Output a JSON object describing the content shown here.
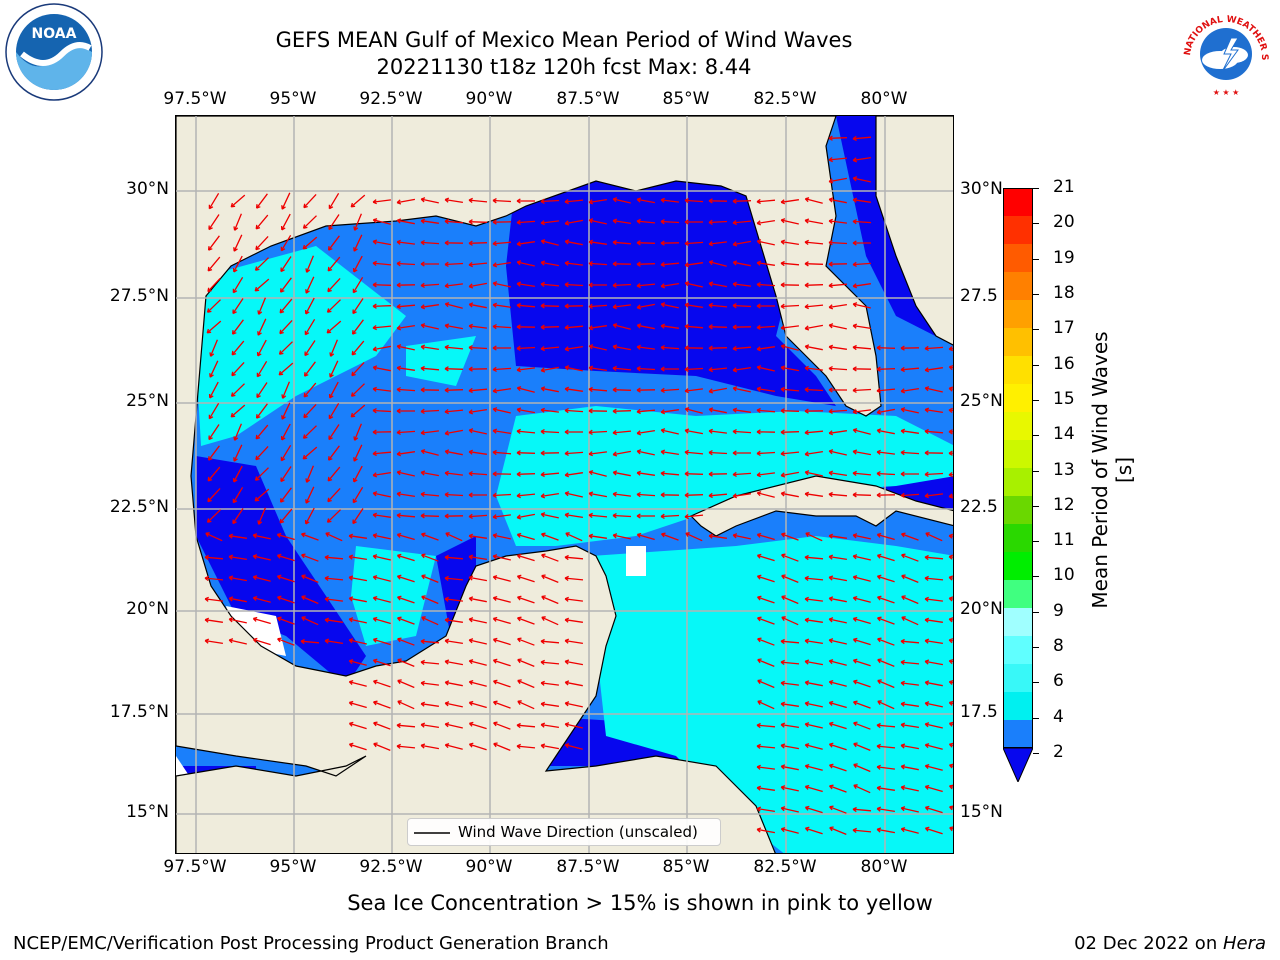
{
  "header": {
    "title_line1": "GEFS MEAN Gulf of Mexico Mean Period of Wind Waves",
    "title_line2": "20221130 t18z 120h fcst   Max: 8.44"
  },
  "logos": {
    "left": "NOAA",
    "right": "NATIONAL WEATHER SERVICE"
  },
  "map": {
    "lon_ticks": [
      "97.5°W",
      "95°W",
      "92.5°W",
      "90°W",
      "87.5°W",
      "85°W",
      "82.5°W",
      "80°W"
    ],
    "lat_ticks": [
      "30°N",
      "27.5°N",
      "25°N",
      "22.5°N",
      "20°N",
      "17.5°N",
      "15°N"
    ],
    "right_lat_ticks": [
      "30°N",
      "27.5",
      "25°N",
      "22.5",
      "20°N",
      "17.5",
      "15°N"
    ],
    "legend_label": "Wind Wave Direction (unscaled)",
    "colors": {
      "land": "#efecdc",
      "ocean_2_4": "#1a7ffb",
      "ocean_4_6": "#06f8f8",
      "ocean_lt_2": "#0707ee",
      "arrow": "#ee0000",
      "grid": "#b3b3b3"
    }
  },
  "colorbar": {
    "label": "Mean Period of Wind Waves [s]",
    "ticks": [
      "21",
      "20",
      "19",
      "18",
      "17",
      "16",
      "15",
      "14",
      "13",
      "12",
      "11",
      "10",
      "9",
      "8",
      "6",
      "4",
      "2"
    ],
    "colors": [
      "#ff0000",
      "#ff3000",
      "#ff5b00",
      "#ff8000",
      "#ffa000",
      "#ffc000",
      "#ffe000",
      "#fff000",
      "#e8f800",
      "#ccf800",
      "#a8f000",
      "#6ad800",
      "#2ad800",
      "#00ee00",
      "#40ff80",
      "#a0ffff",
      "#60ffff",
      "#38f8f8",
      "#00f0f0",
      "#1a7ffb",
      "#0707ee"
    ]
  },
  "footer": {
    "sea_ice_note": "Sea Ice Concentration > 15% is shown in pink to yellow",
    "credit": "NCEP/EMC/Verification Post Processing Product Generation Branch",
    "date": "02 Dec 2022 on ",
    "machine": "Hera"
  }
}
